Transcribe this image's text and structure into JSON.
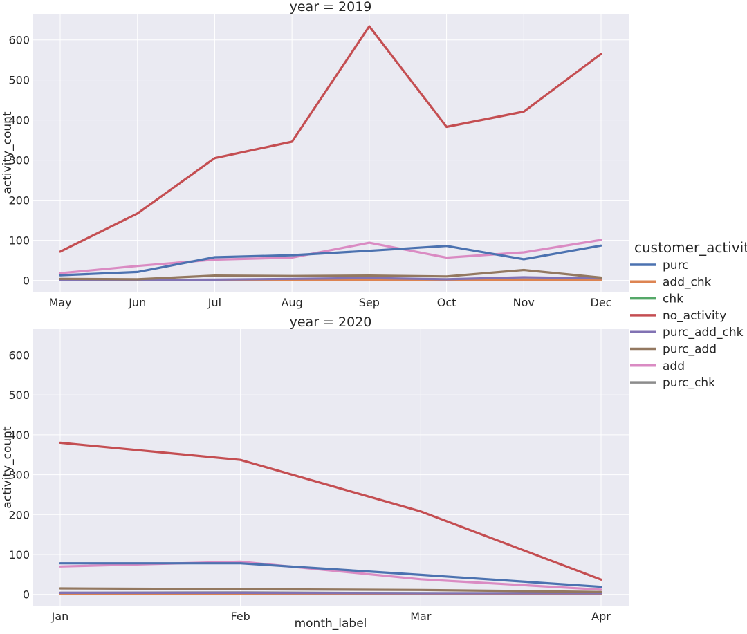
{
  "chart_data": {
    "type": "line",
    "legend": {
      "title": "customer_activity",
      "placement": "right"
    },
    "xlabel": "month_label",
    "ylabel": "activity_count",
    "ylim": [
      -30,
      665
    ],
    "yticks": [
      0,
      100,
      200,
      300,
      400,
      500,
      600
    ],
    "grid": true,
    "colors": {
      "purc": "#4c72b0",
      "add_chk": "#dd8452",
      "chk": "#55a868",
      "no_activity": "#c44e52",
      "purc_add_chk": "#8172b3",
      "purc_add": "#937860",
      "add": "#da8bc3",
      "purc_chk": "#8c8c8c"
    },
    "panels": [
      {
        "title": "year = 2019",
        "categories": [
          "May",
          "Jun",
          "Jul",
          "Aug",
          "Sep",
          "Oct",
          "Nov",
          "Dec"
        ],
        "series": [
          {
            "name": "no_activity",
            "values": [
              72,
              167,
              305,
              346,
              634,
              383,
              421,
              565
            ]
          },
          {
            "name": "purc",
            "values": [
              13,
              21,
              58,
              63,
              74,
              86,
              53,
              87
            ]
          },
          {
            "name": "add",
            "values": [
              18,
              36,
              52,
              57,
              94,
              57,
              70,
              101
            ]
          },
          {
            "name": "purc_add",
            "values": [
              4,
              3,
              12,
              11,
              12,
              10,
              26,
              7
            ]
          },
          {
            "name": "purc_add_chk",
            "values": [
              1,
              1,
              2,
              4,
              6,
              3,
              8,
              5
            ]
          },
          {
            "name": "chk",
            "values": [
              1,
              1,
              1,
              1,
              1,
              1,
              1,
              1
            ]
          },
          {
            "name": "add_chk",
            "values": [
              1,
              1,
              1,
              2,
              2,
              1,
              2,
              2
            ]
          },
          {
            "name": "purc_chk",
            "values": [
              1,
              1,
              1,
              1,
              2,
              1,
              2,
              2
            ]
          }
        ]
      },
      {
        "title": "year = 2020",
        "categories": [
          "Jan",
          "Feb",
          "Mar",
          "Apr"
        ],
        "series": [
          {
            "name": "no_activity",
            "values": [
              380,
              337,
              208,
              37
            ]
          },
          {
            "name": "purc",
            "values": [
              78,
              78,
              49,
              19
            ]
          },
          {
            "name": "add",
            "values": [
              70,
              82,
              38,
              12
            ]
          },
          {
            "name": "purc_add",
            "values": [
              15,
              13,
              11,
              6
            ]
          },
          {
            "name": "purc_add_chk",
            "values": [
              4,
              4,
              3,
              3
            ]
          },
          {
            "name": "chk",
            "values": [
              3,
              3,
              3,
              2
            ]
          },
          {
            "name": "add_chk",
            "values": [
              2,
              2,
              2,
              1
            ]
          },
          {
            "name": "purc_chk",
            "values": [
              4,
              5,
              3,
              3
            ]
          }
        ]
      }
    ],
    "legend_order": [
      "purc",
      "add_chk",
      "chk",
      "no_activity",
      "purc_add_chk",
      "purc_add",
      "add",
      "purc_chk"
    ]
  }
}
